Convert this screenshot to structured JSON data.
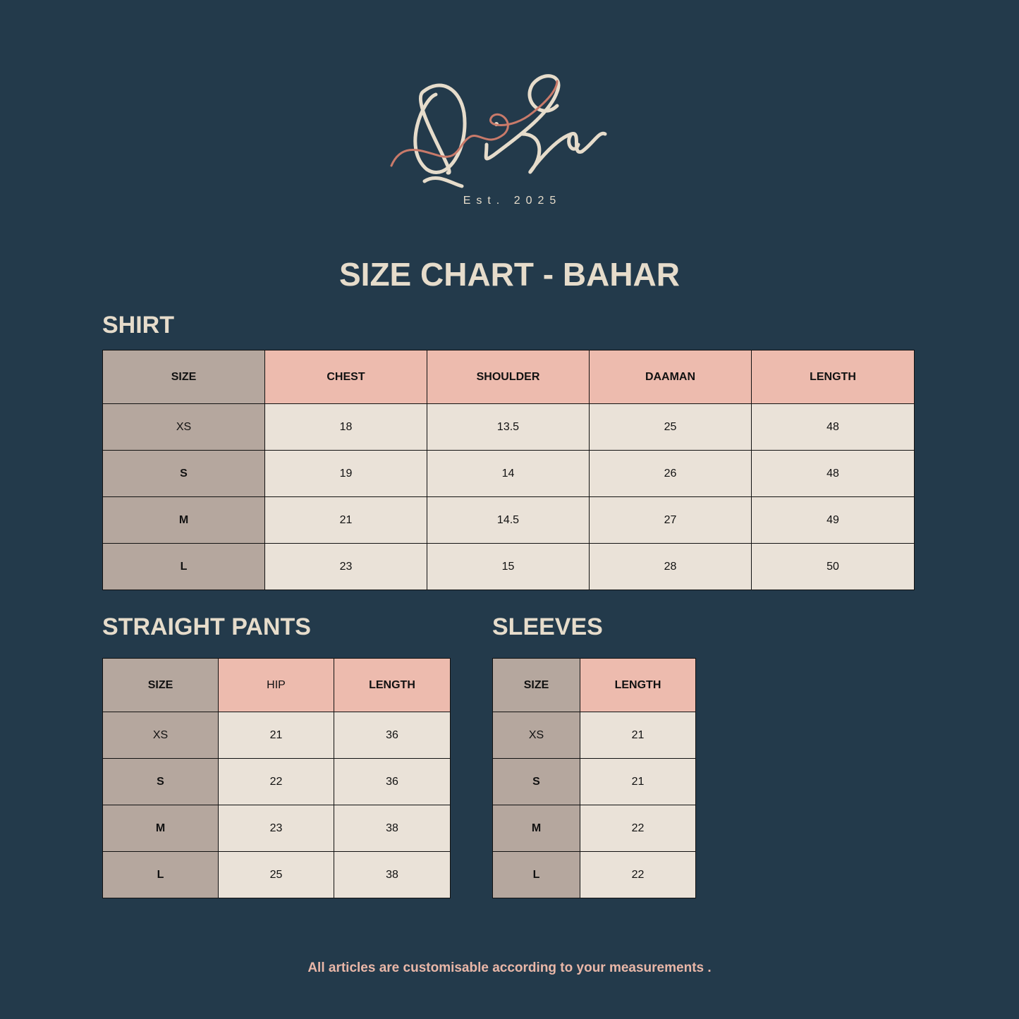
{
  "brand": {
    "logo_text": "QiSa",
    "established": "Est. 2025"
  },
  "title": "SIZE CHART - BAHAR",
  "colors": {
    "background": "#233a4b",
    "cream": "#e6dccb",
    "pink": "#edbbae",
    "taupe": "#b5a79e",
    "cell": "#eae2d8",
    "accent": "#e9b7a8"
  },
  "shirt": {
    "heading": "SHIRT",
    "columns": [
      "SIZE",
      "CHEST",
      "SHOULDER",
      "DAAMAN",
      "LENGTH"
    ],
    "rows": [
      [
        "XS",
        "18",
        "13.5",
        "25",
        "48"
      ],
      [
        "S",
        "19",
        "14",
        "26",
        "48"
      ],
      [
        "M",
        "21",
        "14.5",
        "27",
        "49"
      ],
      [
        "L",
        "23",
        "15",
        "28",
        "50"
      ]
    ]
  },
  "pants": {
    "heading": "STRAIGHT PANTS",
    "columns": [
      "SIZE",
      "HIP",
      "LENGTH"
    ],
    "rows": [
      [
        "XS",
        "21",
        "36"
      ],
      [
        "S",
        "22",
        "36"
      ],
      [
        "M",
        "23",
        "38"
      ],
      [
        "L",
        "25",
        "38"
      ]
    ]
  },
  "sleeves": {
    "heading": "SLEEVES",
    "columns": [
      "SIZE",
      "LENGTH"
    ],
    "rows": [
      [
        "XS",
        "21"
      ],
      [
        "S",
        "21"
      ],
      [
        "M",
        "22"
      ],
      [
        "L",
        "22"
      ]
    ]
  },
  "footer": "All articles are customisable according to your measurements ."
}
